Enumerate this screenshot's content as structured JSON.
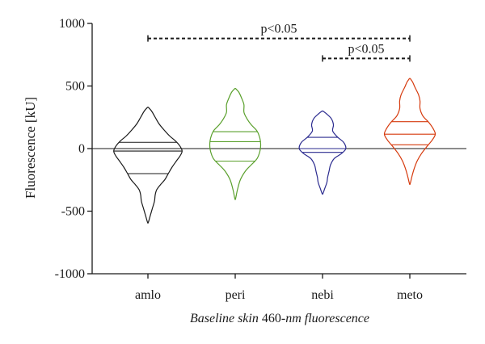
{
  "chart_data": {
    "type": "violin",
    "title": "",
    "ylabel": "Fluorescence [kU]",
    "xlabel": {
      "part1": "Baseline skin ",
      "part2": "460-",
      "part3": "nm fluorescence"
    },
    "ylim": [
      -1000,
      1000
    ],
    "yticks": [
      1000,
      500,
      0,
      -500,
      -1000
    ],
    "ytick_labels": [
      "1000",
      "500",
      "0",
      "-500",
      "-1000"
    ],
    "reference_line": 0,
    "categories": [
      "amlo",
      "peri",
      "nebi",
      "meto"
    ],
    "series": [
      {
        "category": "amlo",
        "color": "#1a1a1a",
        "min": -590,
        "max": 330,
        "q1": -200,
        "median": -20,
        "q3": 50,
        "profile": [
          [
            -590,
            0.5
          ],
          [
            -540,
            3
          ],
          [
            -480,
            6
          ],
          [
            -420,
            9
          ],
          [
            -370,
            10
          ],
          [
            -330,
            12
          ],
          [
            -290,
            17
          ],
          [
            -250,
            23
          ],
          [
            -200,
            28
          ],
          [
            -150,
            33
          ],
          [
            -100,
            39
          ],
          [
            -60,
            44
          ],
          [
            -20,
            47
          ],
          [
            20,
            44
          ],
          [
            60,
            38
          ],
          [
            100,
            30
          ],
          [
            150,
            22
          ],
          [
            200,
            15
          ],
          [
            250,
            10
          ],
          [
            300,
            5
          ],
          [
            330,
            0.5
          ]
        ]
      },
      {
        "category": "peri",
        "color": "#5aa02c",
        "min": -400,
        "max": 480,
        "q1": -100,
        "median": 55,
        "q3": 135,
        "profile": [
          [
            -400,
            0.5
          ],
          [
            -330,
            3
          ],
          [
            -250,
            7
          ],
          [
            -180,
            14
          ],
          [
            -130,
            22
          ],
          [
            -80,
            30
          ],
          [
            -20,
            34
          ],
          [
            30,
            35
          ],
          [
            80,
            34
          ],
          [
            140,
            30
          ],
          [
            190,
            22
          ],
          [
            240,
            16
          ],
          [
            290,
            12
          ],
          [
            350,
            12
          ],
          [
            400,
            9
          ],
          [
            450,
            5
          ],
          [
            480,
            0.5
          ]
        ]
      },
      {
        "category": "nebi",
        "color": "#2b2b8f",
        "min": -360,
        "max": 300,
        "q1": -30,
        "median": 0,
        "q3": 90,
        "profile": [
          [
            -360,
            0.5
          ],
          [
            -320,
            3
          ],
          [
            -270,
            6
          ],
          [
            -230,
            7
          ],
          [
            -180,
            9
          ],
          [
            -130,
            11
          ],
          [
            -80,
            16
          ],
          [
            -40,
            26
          ],
          [
            0,
            32
          ],
          [
            50,
            29
          ],
          [
            90,
            21
          ],
          [
            140,
            14
          ],
          [
            190,
            15
          ],
          [
            240,
            12
          ],
          [
            280,
            5
          ],
          [
            300,
            0.5
          ]
        ]
      },
      {
        "category": "meto",
        "color": "#d63a0d",
        "min": -280,
        "max": 560,
        "q1": 30,
        "median": 115,
        "q3": 215,
        "profile": [
          [
            -280,
            0.5
          ],
          [
            -220,
            3
          ],
          [
            -160,
            6
          ],
          [
            -100,
            10
          ],
          [
            -40,
            16
          ],
          [
            20,
            24
          ],
          [
            70,
            31
          ],
          [
            115,
            35
          ],
          [
            160,
            32
          ],
          [
            210,
            26
          ],
          [
            260,
            18
          ],
          [
            320,
            14
          ],
          [
            380,
            14
          ],
          [
            430,
            12
          ],
          [
            490,
            7
          ],
          [
            530,
            4
          ],
          [
            560,
            0.5
          ]
        ]
      }
    ],
    "significance": [
      {
        "label": "p<0.05",
        "from": "amlo",
        "to": "meto",
        "y": 880
      },
      {
        "label": "p<0.05",
        "from": "nebi",
        "to": "meto",
        "y": 720
      }
    ]
  }
}
